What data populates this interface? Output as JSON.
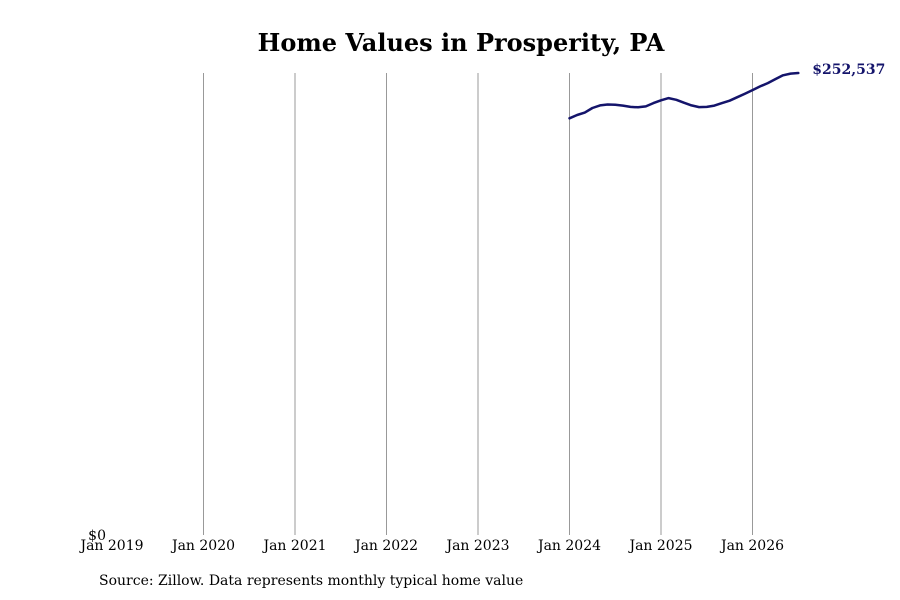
{
  "chart_data": {
    "type": "line",
    "title": "Home Values in Prosperity, PA",
    "xlabel": "",
    "ylabel": "",
    "x_ticks": [
      "Jan 2019",
      "Jan 2020",
      "Jan 2021",
      "Jan 2022",
      "Jan 2023",
      "Jan 2024",
      "Jan 2025",
      "Jan 2026"
    ],
    "y_ticks": [
      "$0"
    ],
    "x_range": [
      "2019-01",
      "2026-07"
    ],
    "ylim": [
      0,
      252537
    ],
    "grid": "vertical",
    "line_color": "#14146b",
    "end_label": "$252,537",
    "series": [
      {
        "x": [
          "2024-01",
          "2024-02",
          "2024-03",
          "2024-04",
          "2024-05",
          "2024-06",
          "2024-07",
          "2024-08",
          "2024-09",
          "2024-10",
          "2024-11",
          "2024-12",
          "2025-01",
          "2025-02",
          "2025-03",
          "2025-04",
          "2025-05",
          "2025-06",
          "2025-07",
          "2025-08",
          "2025-09",
          "2025-10",
          "2025-11",
          "2025-12",
          "2026-01",
          "2026-02",
          "2026-03",
          "2026-04",
          "2026-05",
          "2026-06",
          "2026-07"
        ],
        "values": [
          227800,
          229600,
          230900,
          233400,
          234800,
          235300,
          235200,
          234700,
          234000,
          233800,
          234300,
          236100,
          237600,
          238800,
          237900,
          236300,
          234800,
          233900,
          234000,
          234700,
          236100,
          237400,
          239300,
          241200,
          243200,
          245200,
          247000,
          249200,
          251300,
          252200,
          252537
        ]
      }
    ]
  },
  "source_note": "Source: Zillow. Data represents monthly typical home value"
}
